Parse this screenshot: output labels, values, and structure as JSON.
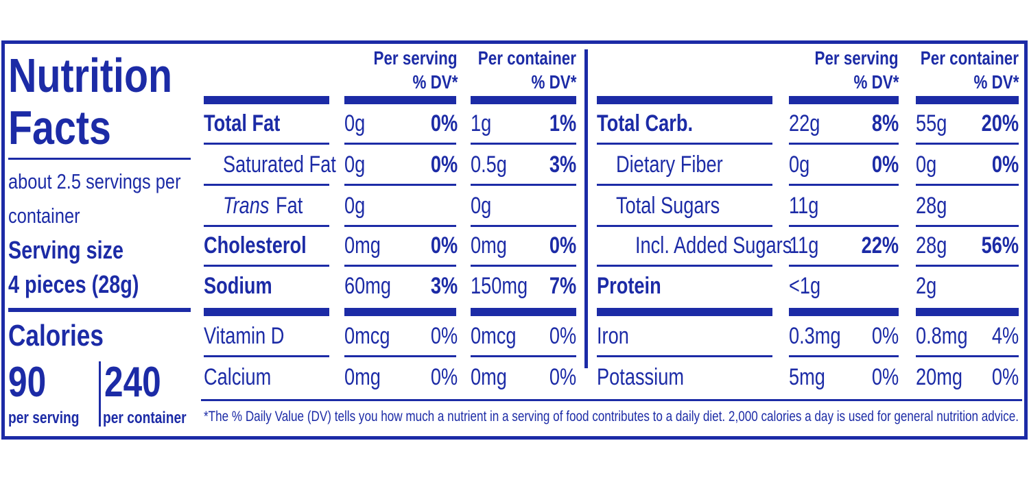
{
  "color": "#1c2ba6",
  "title": "Nutrition Facts",
  "servings": "about 2.5 servings per container",
  "serving_size_label": "Serving size",
  "serving_size": "4 pieces (28g)",
  "calories_label": "Calories",
  "calories": [
    {
      "value": "90",
      "label": "per serving"
    },
    {
      "value": "240",
      "label": "per container"
    }
  ],
  "left_headers": [
    [
      "Per serving",
      "% DV*"
    ],
    [
      "Per container",
      "% DV*"
    ]
  ],
  "right_headers": [
    [
      "Per serving",
      "% DV*"
    ],
    [
      "Per container",
      "% DV*"
    ]
  ],
  "left_rows": [
    {
      "name": "Total Fat",
      "bold": true,
      "indent": 0,
      "serving": "0g",
      "serving_dv": "0%",
      "container": "1g",
      "container_dv": "1%"
    },
    {
      "name": "Saturated Fat",
      "bold": false,
      "indent": 1,
      "serving": "0g",
      "serving_dv": "0%",
      "container": "0.5g",
      "container_dv": "3%"
    },
    {
      "name_italic": "Trans",
      "name": "Fat",
      "bold": false,
      "indent": 1,
      "serving": "0g",
      "container": "0g"
    },
    {
      "name": "Cholesterol",
      "bold": true,
      "indent": 0,
      "serving": "0mg",
      "serving_dv": "0%",
      "container": "0mg",
      "container_dv": "0%"
    },
    {
      "name": "Sodium",
      "bold": true,
      "indent": 0,
      "serving": "60mg",
      "serving_dv": "3%",
      "container": "150mg",
      "container_dv": "7%"
    }
  ],
  "left_vitamins": [
    {
      "name": "Vitamin D",
      "serving": "0mcg",
      "serving_dv": "0%",
      "container": "0mcg",
      "container_dv": "0%"
    },
    {
      "name": "Calcium",
      "serving": "0mg",
      "serving_dv": "0%",
      "container": "0mg",
      "container_dv": "0%"
    }
  ],
  "right_rows": [
    {
      "name": "Total Carb.",
      "bold": true,
      "indent": 0,
      "serving": "22g",
      "serving_dv": "8%",
      "container": "55g",
      "container_dv": "20%"
    },
    {
      "name": "Dietary Fiber",
      "bold": false,
      "indent": 1,
      "serving": "0g",
      "serving_dv": "0%",
      "container": "0g",
      "container_dv": "0%"
    },
    {
      "name": "Total Sugars",
      "bold": false,
      "indent": 1,
      "serving": "11g",
      "container": "28g"
    },
    {
      "name": "Incl. Added Sugars",
      "bold": false,
      "indent": 2,
      "serving": "11g",
      "serving_dv": "22%",
      "container": "28g",
      "container_dv": "56%"
    },
    {
      "name": "Protein",
      "bold": true,
      "indent": 0,
      "serving": "<1g",
      "container": "2g"
    }
  ],
  "right_minerals": [
    {
      "name": "Iron",
      "serving": "0.3mg",
      "serving_dv": "0%",
      "container": "0.8mg",
      "container_dv": "4%"
    },
    {
      "name": "Potassium",
      "serving": "5mg",
      "serving_dv": "0%",
      "container": "20mg",
      "container_dv": "0%"
    }
  ],
  "footnote": "*The % Daily Value (DV) tells you how much a nutrient in a serving of food contributes to a daily diet. 2,000 calories a day is used for general nutrition advice."
}
